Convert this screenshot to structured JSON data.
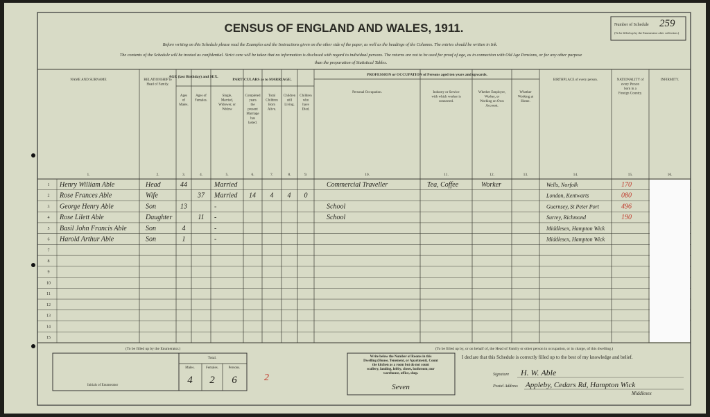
{
  "header": {
    "title": "CENSUS OF ENGLAND AND WALES, 1911.",
    "line1": "Before writing on this Schedule please read the Examples and the Instructions given on the other side of the paper, as well as the headings of the Columns. The entries should be written in Ink.",
    "line2": "The contents of the Schedule will be treated as confidential. Strict care will be taken that no information is disclosed with regard to individual persons. The returns are not to be used for proof of age, as in connection with Old Age Pensions, or for any other purpose",
    "line3": "than the preparation of Statistical Tables.",
    "schedule_label": "Number of Schedule",
    "schedule_note": "(To be filled up by the Enumerator after collection.)",
    "schedule_number": "259"
  },
  "columns": [
    {
      "title": "NAME AND SURNAME",
      "number": "1."
    },
    {
      "title": "RELATIONSHIP to Head of Family.",
      "number": "2."
    },
    {
      "title": "Ages of Males.",
      "number": "3."
    },
    {
      "title": "Ages of Females.",
      "number": "4."
    },
    {
      "title": "Single, Married, Widower, or Widow",
      "number": "5."
    },
    {
      "title": "Completed years the present Marriage has lasted.",
      "number": "6."
    },
    {
      "title": "Total Children Born Alive.",
      "number": "7."
    },
    {
      "title": "Children still Living.",
      "number": "8."
    },
    {
      "title": "Children who have Died.",
      "number": "9."
    },
    {
      "title": "Personal Occupation.",
      "number": "10."
    },
    {
      "title": "Industry or Service with which worker is connected.",
      "number": "11."
    },
    {
      "title": "Whether Employer, Worker, or Working on Own Account.",
      "number": "12."
    },
    {
      "title": "Whether Working at Home.",
      "number": "13."
    },
    {
      "title": "BIRTHPLACE of every person.",
      "number": "14."
    },
    {
      "title": "NATIONALITY of every Person born in a Foreign Country.",
      "number": "15."
    },
    {
      "title": "INFIRMITY.",
      "number": "16."
    }
  ],
  "group_headers": {
    "age": "AGE (last Birthday) and SEX.",
    "marriage": "PARTICULARS as to MARRIAGE.",
    "occupation": "PROFESSION or OCCUPATION of Persons aged ten years and upwards."
  },
  "row_numbers": [
    1,
    2,
    3,
    4,
    5,
    6,
    7,
    8,
    9,
    10,
    11,
    12,
    13,
    14,
    15
  ],
  "rows": [
    {
      "name": "Henry William Able",
      "relationship": "Head",
      "age_male": "44",
      "marriage": "Married",
      "occupation": "Commercial Traveller",
      "industry": "Tea, Coffee",
      "employer": "Worker",
      "birthplace": "Wells, Norfolk",
      "code": "170"
    },
    {
      "name": "Rose Frances Able",
      "relationship": "Wife",
      "age_female": "37",
      "marriage": "Married",
      "years": "14",
      "born": "4",
      "living": "4",
      "died": "0",
      "birthplace": "London, Kentwarts",
      "code": "080"
    },
    {
      "name": "George Henry Able",
      "relationship": "Son",
      "age_male": "13",
      "marriage": "-",
      "occupation": "School",
      "birthplace": "Guernsey, St Peter Port",
      "code": "496"
    },
    {
      "name": "Rose Lilett Able",
      "relationship": "Daughter",
      "age_female": "11",
      "marriage": "-",
      "occupation": "School",
      "birthplace": "Surrey, Richmond",
      "code": "190"
    },
    {
      "name": "Basil John Francis Able",
      "relationship": "Son",
      "age_male": "4",
      "marriage": "-",
      "birthplace": "Middlesex, Hampton Wick"
    },
    {
      "name": "Harold Arthur Able",
      "relationship": "Son",
      "age_male": "1",
      "marriage": "-",
      "birthplace": "Middlesex, Hampton Wick"
    }
  ],
  "footer": {
    "enumerator_title": "(To be filled up by the Enumerator.)",
    "males_label": "Males.",
    "females_label": "Females.",
    "persons_label": "Persons.",
    "total_label": "Total.",
    "males": "4",
    "females": "2",
    "persons": "6",
    "red_mark": "2",
    "initials_label": "Initials of Enumerator",
    "rooms_text": "Write below the Number of Rooms in this Dwelling (House, Tenement, or Apartment). Count the kitchen as a room but do not count scullery, landing, lobby, closet, bathroom; nor warehouse, office, shop.",
    "rooms": "Seven",
    "head_title": "(To be filled up by, or on behalf of, the Head of Family or other person in occupation, or in charge, of this dwelling.)",
    "declaration": "I declare that this Schedule is correctly filled up to the best of my knowledge and belief.",
    "signature_label": "Signature",
    "signature": "H. W. Able",
    "address_label": "Postal Address",
    "address": "Appleby, Cedars Rd, Hampton Wick",
    "address2": "Middlesex"
  }
}
